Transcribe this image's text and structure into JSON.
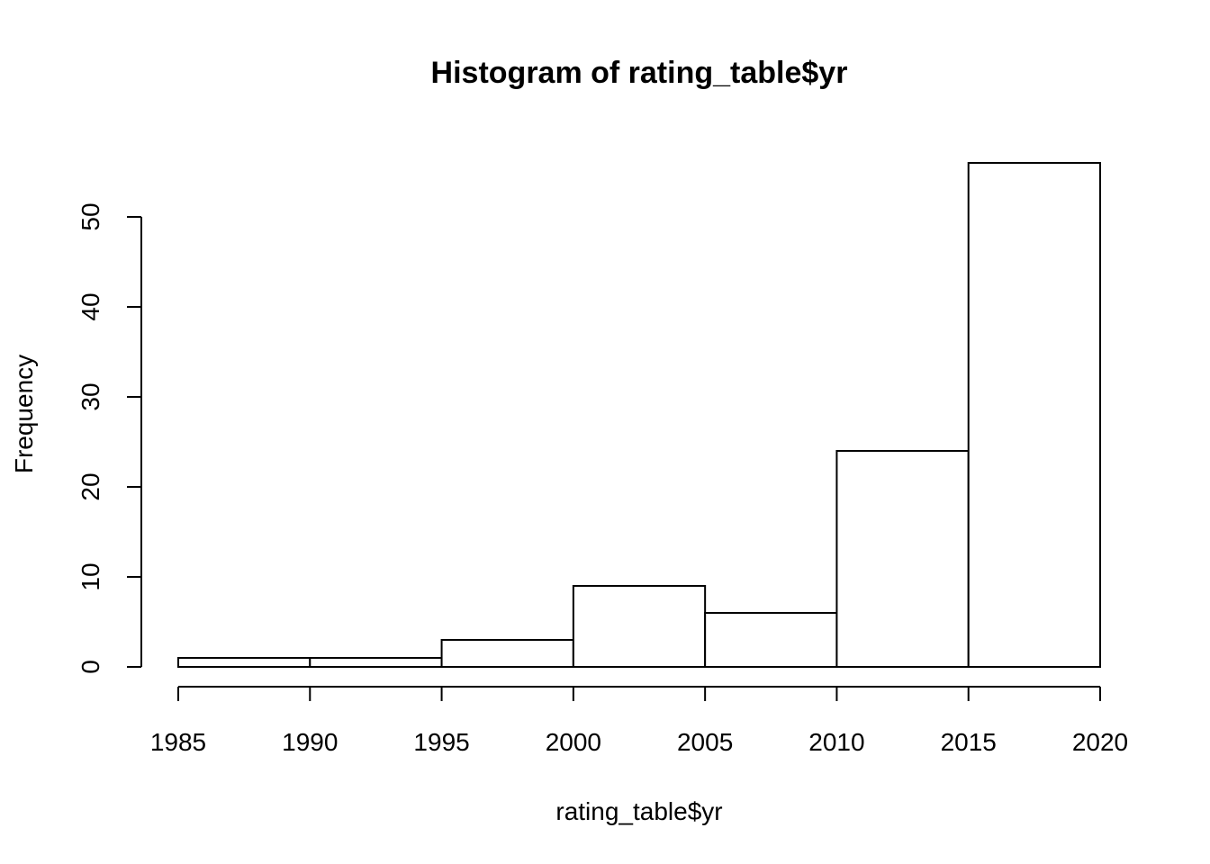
{
  "chart_data": {
    "type": "bar",
    "title": "Histogram of rating_table$yr",
    "xlabel": "rating_table$yr",
    "ylabel": "Frequency",
    "bins": [
      {
        "from": 1985,
        "to": 1990,
        "count": 1
      },
      {
        "from": 1990,
        "to": 1995,
        "count": 1
      },
      {
        "from": 1995,
        "to": 2000,
        "count": 3
      },
      {
        "from": 2000,
        "to": 2005,
        "count": 9
      },
      {
        "from": 2005,
        "to": 2010,
        "count": 6
      },
      {
        "from": 2010,
        "to": 2015,
        "count": 24
      },
      {
        "from": 2015,
        "to": 2020,
        "count": 56
      }
    ],
    "x_ticks": [
      1985,
      1990,
      1995,
      2000,
      2005,
      2010,
      2015,
      2020
    ],
    "y_ticks": [
      0,
      10,
      20,
      30,
      40,
      50
    ],
    "xlim": [
      1985,
      2020
    ],
    "ylim": [
      0,
      56
    ],
    "grid": false,
    "colors": {
      "bar_fill": "#ffffff",
      "bar_stroke": "#000000"
    }
  }
}
